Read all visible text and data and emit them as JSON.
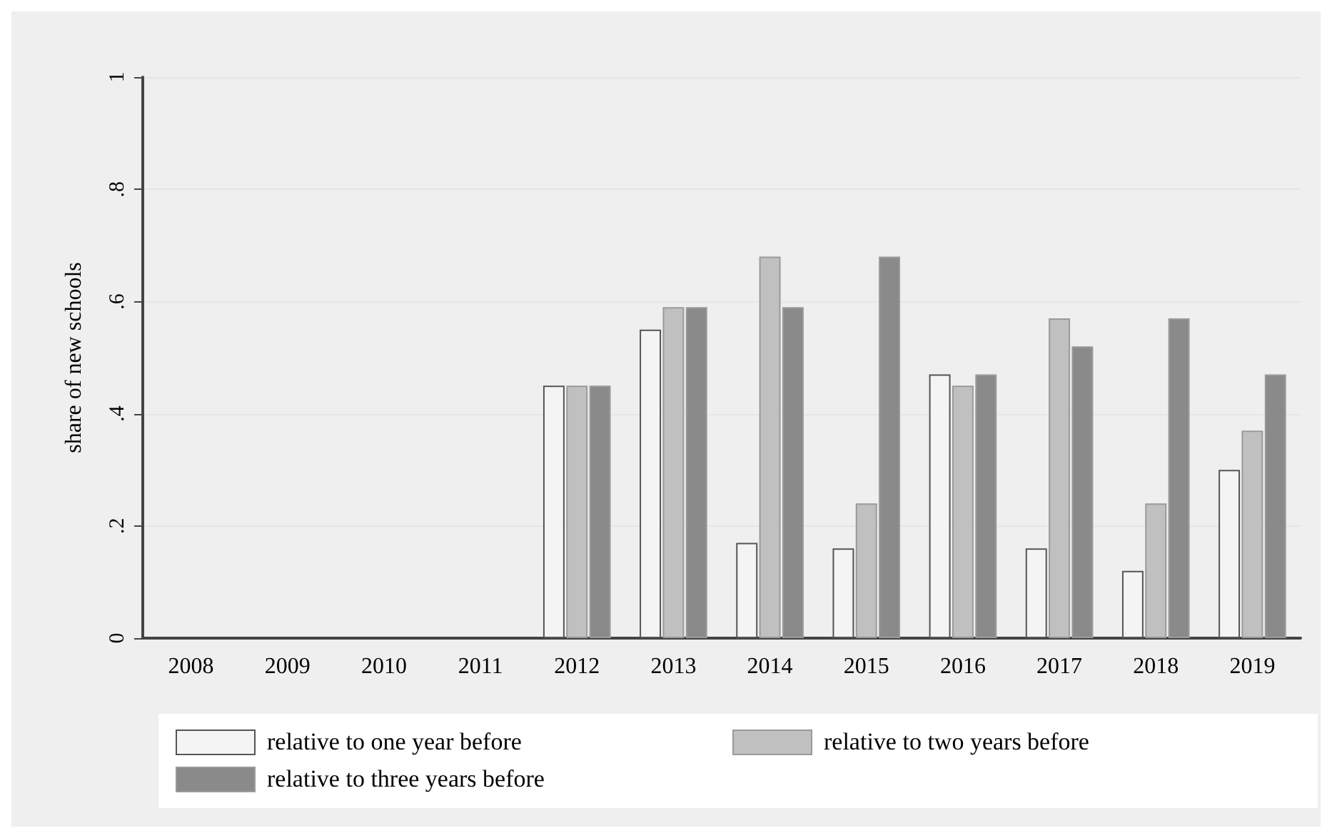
{
  "chart_data": {
    "type": "bar",
    "ylabel": "share of new schools",
    "categories": [
      "2008",
      "2009",
      "2010",
      "2011",
      "2012",
      "2013",
      "2014",
      "2015",
      "2016",
      "2017",
      "2018",
      "2019"
    ],
    "series": [
      {
        "name": "relative to one year before",
        "color": "#f4f4f4",
        "values": [
          null,
          null,
          null,
          null,
          0.45,
          0.55,
          0.17,
          0.16,
          0.47,
          0.16,
          0.12,
          0.3
        ]
      },
      {
        "name": "relative to two years before",
        "color": "#c0c0c0",
        "values": [
          null,
          null,
          null,
          null,
          0.45,
          0.59,
          0.68,
          0.24,
          0.45,
          0.57,
          0.24,
          0.37
        ]
      },
      {
        "name": "relative to three years before",
        "color": "#8a8a8a",
        "values": [
          null,
          null,
          null,
          null,
          0.45,
          0.59,
          0.59,
          0.68,
          0.47,
          0.52,
          0.57,
          0.47
        ]
      }
    ],
    "ylim": [
      0,
      1
    ],
    "yticks": [
      0,
      {
        "value": 0.2,
        "label": ".2"
      },
      {
        "value": 0.4,
        "label": ".4"
      },
      {
        "value": 0.6,
        "label": ".6"
      },
      {
        "value": 0.8,
        "label": ".8"
      },
      1
    ],
    "grid": "y",
    "legend": "bottom"
  }
}
